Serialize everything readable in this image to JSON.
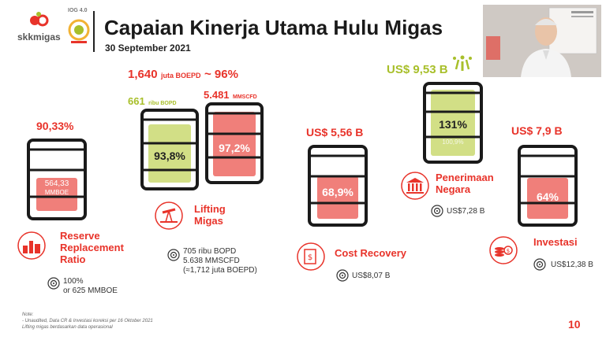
{
  "header": {
    "title": "Capaian Kinerja Utama Hulu Migas",
    "date": "30 September 2021",
    "logo_text": "skkmigas",
    "badge_text": "IOG 4.0"
  },
  "lifting_top": {
    "total": "1,640",
    "total_unit": "juta BOEPD",
    "total_pct": "~ 96%",
    "oil": "661",
    "oil_unit": "ribu BOPD",
    "gas": "5.481",
    "gas_unit": "MMSCFD"
  },
  "reserve": {
    "headline": "90,33%",
    "barrel_value": "564,33",
    "barrel_unit": "MMBOE",
    "label": "Reserve Replacement Ratio",
    "target_line1": "100%",
    "target_line2": "or 625 MMBOE",
    "fill": 0.9033
  },
  "lifting": {
    "oil_pct": "93,8%",
    "gas_pct": "97,2%",
    "label": "Lifting Migas",
    "target_line1": "705 ribu BOPD",
    "target_line2": "5.638 MMSCFD",
    "target_line3": "(≈1,712 juta BOEPD)",
    "oil_fill": 0.938,
    "gas_fill": 0.972
  },
  "cost_recovery": {
    "headline": "US$ 5,56 B",
    "barrel_pct": "68,9%",
    "label": "Cost Recovery",
    "target": "US$8,07 B",
    "fill": 0.689
  },
  "penerimaan": {
    "headline": "US$ 9,53 B",
    "barrel_pct": "131%",
    "barrel_sub": "100,9%",
    "label": "Penerimaan Negara",
    "target": "US$7,28 B",
    "fill": 1.0
  },
  "investasi": {
    "headline": "US$ 7,9 B",
    "barrel_pct": "64%",
    "label": "Investasi",
    "target": "US$12,38 B",
    "fill": 0.64
  },
  "footer": {
    "note_title": "Note:",
    "note_line1": "-   Unaudited, Data CR & Investasi koreksi per 16 Oktober 2021",
    "note_line2": "    Lifting migas berdasarkan data operasional",
    "page": "10"
  },
  "colors": {
    "red": "#e8332a",
    "green": "#a8bf2a",
    "barrel_red_fill": "#f07f7a",
    "barrel_green_fill": "#d2df86",
    "barrel_outline": "#1a1a1a"
  }
}
